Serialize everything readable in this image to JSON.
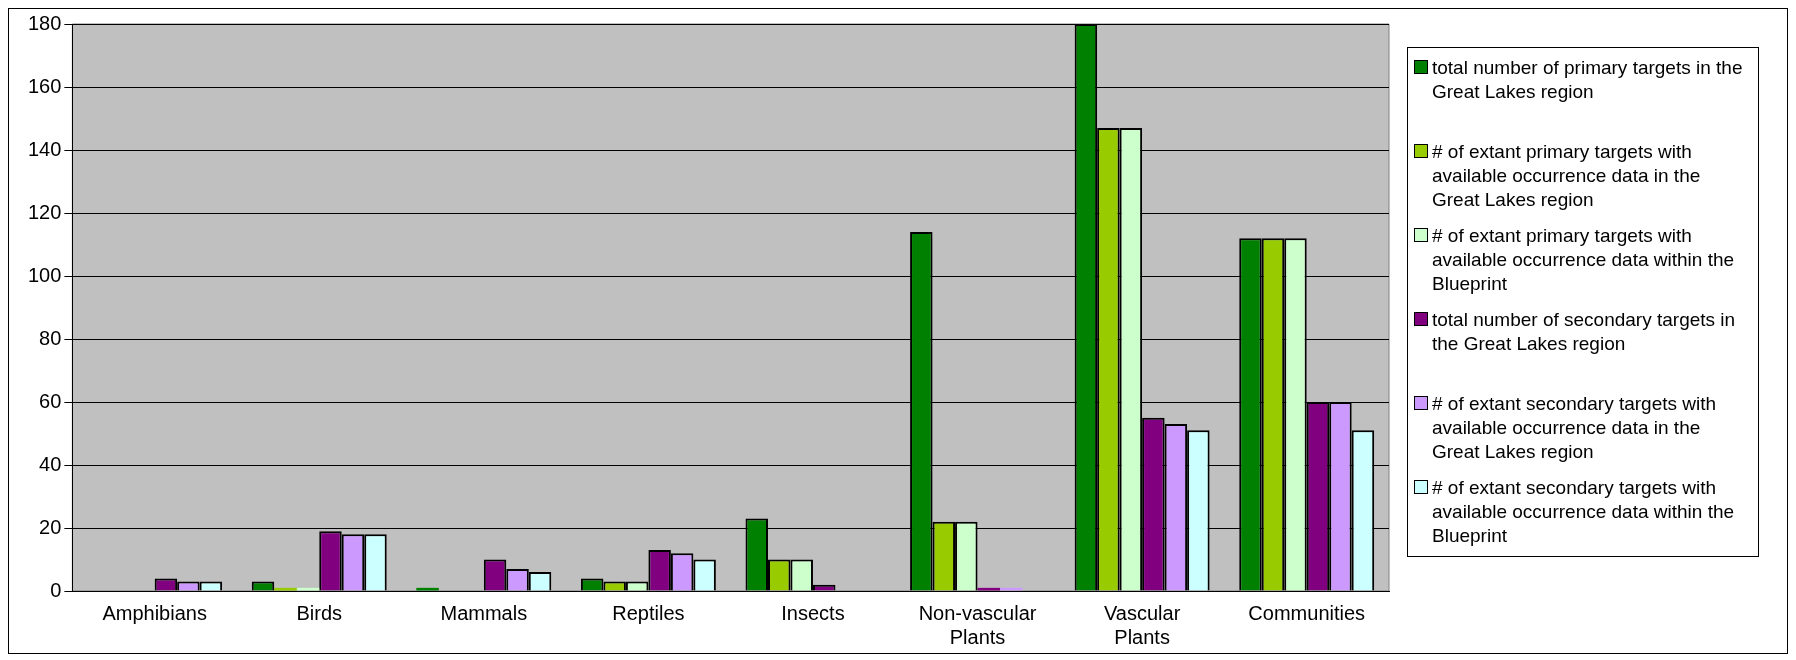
{
  "chart_data": {
    "type": "bar",
    "categories": [
      "Amphibians",
      "Birds",
      "Mammals",
      "Reptiles",
      "Insects",
      "Non-vascular Plants",
      "Vascular Plants",
      "Communities"
    ],
    "series": [
      {
        "name": "total number of primary targets in the Great Lakes region",
        "color": "#008000",
        "values": [
          0,
          3,
          1,
          4,
          23,
          114,
          180,
          112
        ]
      },
      {
        "name": "# of extant primary targets with available occurrence data in the Great Lakes region",
        "color": "#99cc00",
        "values": [
          0,
          1,
          0,
          3,
          10,
          22,
          147,
          112
        ]
      },
      {
        "name": "# of extant primary targets with available occurrence data within the Blueprint",
        "color": "#ccffcc",
        "values": [
          0,
          1,
          0,
          3,
          10,
          22,
          147,
          112
        ]
      },
      {
        "name": "total number of secondary targets in the Great Lakes region",
        "color": "#800080",
        "values": [
          4,
          19,
          10,
          13,
          2,
          1,
          55,
          60
        ]
      },
      {
        "name": "# of extant secondary targets with available occurrence data in the Great Lakes region",
        "color": "#cc99ff",
        "values": [
          3,
          18,
          7,
          12,
          0,
          1,
          53,
          60
        ]
      },
      {
        "name": "# of extant secondary targets with available occurrence data within the Blueprint",
        "color": "#ccffff",
        "values": [
          3,
          18,
          6,
          10,
          0,
          0,
          51,
          51
        ]
      }
    ],
    "ylim": [
      0,
      180
    ],
    "yticks": [
      0,
      20,
      40,
      60,
      80,
      100,
      120,
      140,
      160,
      180
    ],
    "grid": "y",
    "legend": "right"
  }
}
